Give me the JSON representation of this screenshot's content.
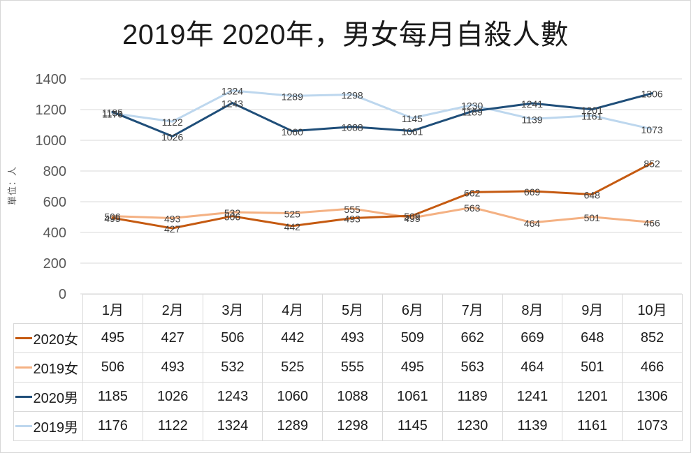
{
  "title": "2019年 2020年，男女每月自殺人數",
  "y_axis_title": "單位：人",
  "colors": {
    "gridline": "#d9d9d9",
    "tick_label": "#595959",
    "data_label": "#404040",
    "table_border": "#d9d9d9",
    "table_text": "#1c1c1c",
    "title_text": "#1a1a1a"
  },
  "chart_data": {
    "type": "line",
    "title": "2019年 2020年，男女每月自殺人數",
    "xlabel": "",
    "ylabel": "單位：人",
    "ylim": [
      0,
      1400
    ],
    "ytick_step": 200,
    "grid": true,
    "legend_position": "data-table",
    "data_labels": "center",
    "categories": [
      "1月",
      "2月",
      "3月",
      "4月",
      "5月",
      "6月",
      "7月",
      "8月",
      "9月",
      "10月"
    ],
    "series": [
      {
        "name": "2020女",
        "color": "#C55A11",
        "values": [
          495,
          427,
          506,
          442,
          493,
          509,
          662,
          669,
          648,
          852
        ]
      },
      {
        "name": "2019女",
        "color": "#F4B183",
        "values": [
          506,
          493,
          532,
          525,
          555,
          495,
          563,
          464,
          501,
          466
        ]
      },
      {
        "name": "2020男",
        "color": "#1F4E79",
        "values": [
          1185,
          1026,
          1243,
          1060,
          1088,
          1061,
          1189,
          1241,
          1201,
          1306
        ]
      },
      {
        "name": "2019男",
        "color": "#BDD7EE",
        "values": [
          1176,
          1122,
          1324,
          1289,
          1298,
          1145,
          1230,
          1139,
          1161,
          1073
        ]
      }
    ],
    "draw_order": [
      1,
      3,
      0,
      2
    ]
  }
}
